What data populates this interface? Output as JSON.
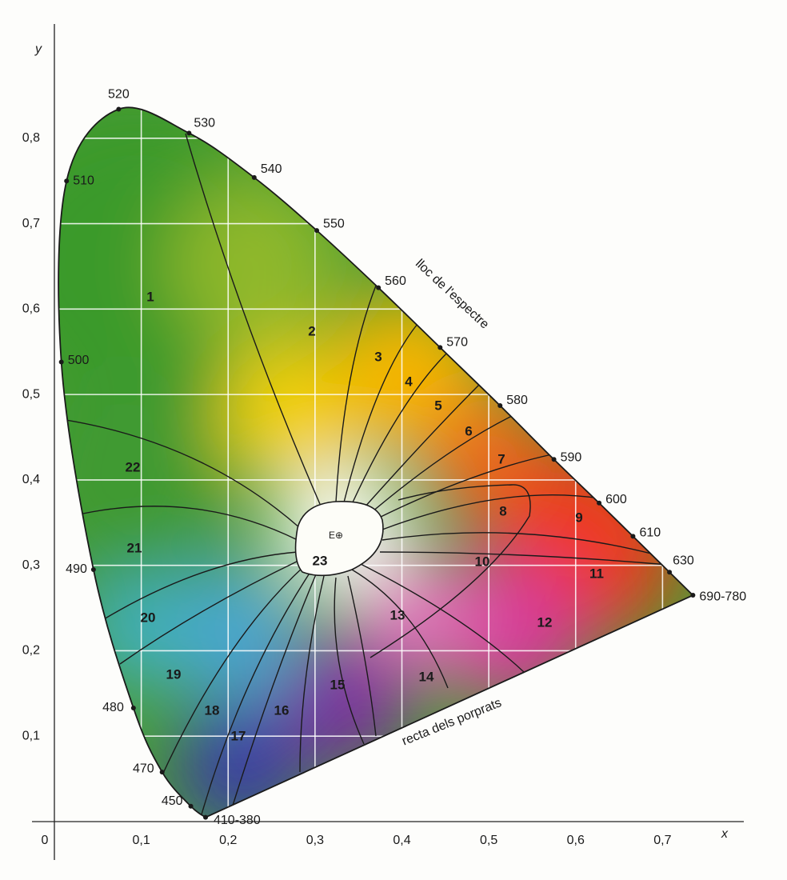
{
  "chart_data": {
    "type": "chromaticity",
    "xlabel": "x",
    "ylabel": "y",
    "xlim": [
      0,
      0.8
    ],
    "ylim": [
      0,
      0.93
    ],
    "xticks": [
      0,
      {
        "value": 0.1,
        "label": "0,1"
      },
      {
        "value": 0.2,
        "label": "0,2"
      },
      {
        "value": 0.3,
        "label": "0,3"
      },
      {
        "value": 0.4,
        "label": "0,4"
      },
      {
        "value": 0.5,
        "label": "0,5"
      },
      {
        "value": 0.6,
        "label": "0,6"
      },
      {
        "value": 0.7,
        "label": "0,7"
      }
    ],
    "yticks": [
      {
        "value": 0.1,
        "label": "0,1"
      },
      {
        "value": 0.2,
        "label": "0,2"
      },
      {
        "value": 0.3,
        "label": "0,3"
      },
      {
        "value": 0.4,
        "label": "0,4"
      },
      {
        "value": 0.5,
        "label": "0,5"
      },
      {
        "value": 0.6,
        "label": "0,6"
      },
      {
        "value": 0.7,
        "label": "0,7"
      },
      {
        "value": 0.8,
        "label": "0,8"
      }
    ],
    "grid": true,
    "locus": {
      "labels": [
        "410-380",
        "450",
        "470",
        "480",
        "490",
        "500",
        "510",
        "520",
        "530",
        "540",
        "550",
        "560",
        "570",
        "580",
        "590",
        "600",
        "610",
        "630",
        "690-780"
      ],
      "x": [
        0.174,
        0.157,
        0.124,
        0.091,
        0.045,
        0.008,
        0.014,
        0.074,
        0.155,
        0.23,
        0.302,
        0.373,
        0.444,
        0.513,
        0.575,
        0.627,
        0.666,
        0.708,
        0.735
      ],
      "y": [
        0.005,
        0.018,
        0.058,
        0.133,
        0.295,
        0.538,
        0.75,
        0.834,
        0.806,
        0.754,
        0.692,
        0.625,
        0.555,
        0.487,
        0.424,
        0.373,
        0.334,
        0.292,
        0.265
      ]
    },
    "regions": [
      "1",
      "2",
      "3",
      "4",
      "5",
      "6",
      "7",
      "8",
      "9",
      "10",
      "11",
      "12",
      "13",
      "14",
      "15",
      "16",
      "17",
      "18",
      "19",
      "20",
      "21",
      "22",
      "23"
    ],
    "annotations": {
      "locus_label": "lloc de l'espectre",
      "purple_line_label": "recta dels porprats",
      "white_point": "E⊕"
    }
  }
}
